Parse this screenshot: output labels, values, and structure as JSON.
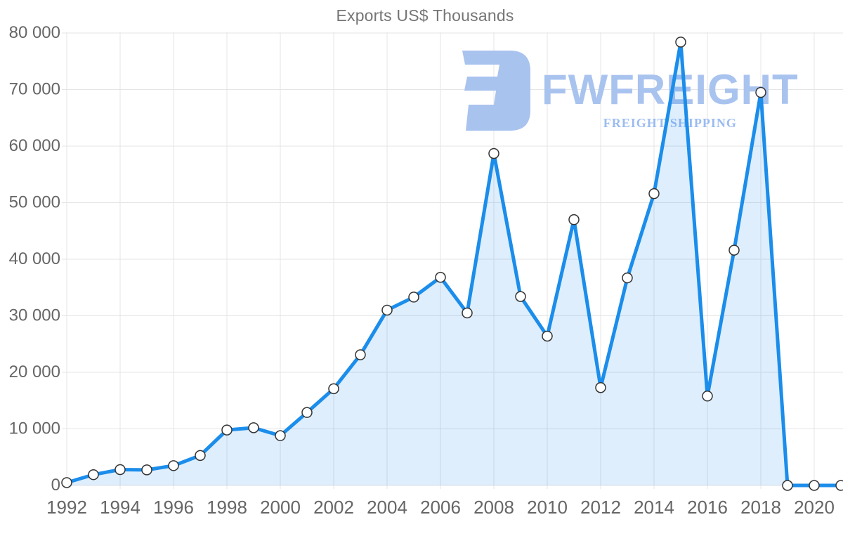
{
  "title": "Exports US$ Thousands",
  "watermark": {
    "brand": "FWFREIGHT",
    "tagline": "FREIGHT SHIPPING"
  },
  "chart_data": {
    "type": "area",
    "title": "Exports US$ Thousands",
    "xlabel": "",
    "ylabel": "",
    "x": [
      1992,
      1993,
      1994,
      1995,
      1996,
      1997,
      1998,
      1999,
      2000,
      2001,
      2002,
      2003,
      2004,
      2005,
      2006,
      2007,
      2008,
      2009,
      2010,
      2011,
      2012,
      2013,
      2014,
      2015,
      2016,
      2017,
      2018,
      2019,
      2020,
      2021
    ],
    "series": [
      {
        "name": "Exports US$ Thousands",
        "values": [
          500,
          1900,
          2800,
          2750,
          3500,
          5300,
          9800,
          10200,
          8800,
          12900,
          17100,
          23100,
          31000,
          33300,
          36800,
          30500,
          58700,
          33400,
          26400,
          47000,
          17300,
          36700,
          51600,
          78400,
          15800,
          41600,
          69500,
          0,
          0,
          0
        ]
      }
    ],
    "ylim": [
      0,
      80000
    ],
    "y_ticks": [
      0,
      10000,
      20000,
      30000,
      40000,
      50000,
      60000,
      70000,
      80000
    ],
    "y_tick_labels": [
      "0",
      "10 000",
      "20 000",
      "30 000",
      "40 000",
      "50 000",
      "60 000",
      "70 000",
      "80 000"
    ],
    "x_ticks": [
      1992,
      1994,
      1996,
      1998,
      2000,
      2002,
      2004,
      2006,
      2008,
      2010,
      2012,
      2014,
      2016,
      2018,
      2020
    ],
    "x_tick_labels": [
      "1992",
      "1994",
      "1996",
      "1998",
      "2000",
      "2002",
      "2004",
      "2006",
      "2008",
      "2010",
      "2012",
      "2014",
      "2016",
      "2018",
      "2020"
    ],
    "grid": true,
    "legend": "none",
    "marker": "circle"
  },
  "colors": {
    "line": "#1b8deb",
    "fill": "rgba(31,141,233,0.15)",
    "marker_fill": "#ffffff",
    "marker_stroke": "#333333",
    "gridline": "#e4e4e4",
    "axis_text": "#666666",
    "title_text": "#757575",
    "watermark": "#a9c3ef",
    "watermark_tagline": "#9bbbf2"
  }
}
